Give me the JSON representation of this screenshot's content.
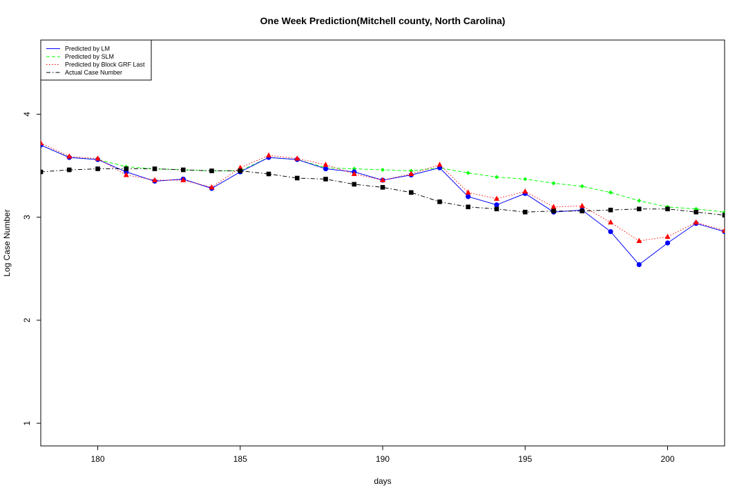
{
  "chart_data": {
    "type": "line",
    "title": "One Week Prediction(Mitchell county, North Carolina)",
    "xlabel": "days",
    "ylabel": "Log Case Number",
    "xlim": [
      178,
      202
    ],
    "ylim": [
      0.78,
      4.72
    ],
    "x_ticks": [
      180,
      185,
      190,
      195,
      200
    ],
    "y_ticks": [
      1,
      2,
      3,
      4
    ],
    "legend_position": "top-left",
    "x": [
      178,
      179,
      180,
      181,
      182,
      183,
      184,
      185,
      186,
      187,
      188,
      189,
      190,
      191,
      192,
      193,
      194,
      195,
      196,
      197,
      198,
      199,
      200,
      201,
      202
    ],
    "series": [
      {
        "name": "Predicted by LM",
        "color": "#0000ff",
        "line_style": "solid",
        "marker": "circle",
        "values": [
          3.7,
          3.58,
          3.56,
          3.44,
          3.35,
          3.37,
          3.28,
          3.44,
          3.58,
          3.56,
          3.47,
          3.44,
          3.36,
          3.41,
          3.48,
          3.2,
          3.12,
          3.23,
          3.05,
          3.07,
          2.86,
          2.54,
          2.75,
          2.94,
          2.86
        ]
      },
      {
        "name": "Predicted by SLM",
        "color": "#00ff00",
        "line_style": "dashed",
        "marker": "diamond",
        "values": [
          3.7,
          3.58,
          3.56,
          3.49,
          3.47,
          3.46,
          3.45,
          3.45,
          3.58,
          3.56,
          3.48,
          3.47,
          3.46,
          3.45,
          3.48,
          3.43,
          3.39,
          3.37,
          3.33,
          3.3,
          3.24,
          3.16,
          3.1,
          3.08,
          3.05
        ]
      },
      {
        "name": "Predicted by Block GRF Last",
        "color": "#ff0000",
        "line_style": "dotted",
        "marker": "triangle",
        "values": [
          3.72,
          3.59,
          3.57,
          3.41,
          3.36,
          3.36,
          3.29,
          3.48,
          3.6,
          3.57,
          3.51,
          3.42,
          3.36,
          3.42,
          3.51,
          3.24,
          3.18,
          3.25,
          3.1,
          3.11,
          2.95,
          2.77,
          2.81,
          2.95,
          2.87
        ]
      },
      {
        "name": "Actual Case Number",
        "color": "#000000",
        "line_style": "dashdot",
        "marker": "square",
        "values": [
          3.44,
          3.46,
          3.47,
          3.47,
          3.47,
          3.46,
          3.45,
          3.45,
          3.42,
          3.38,
          3.37,
          3.32,
          3.29,
          3.24,
          3.15,
          3.1,
          3.08,
          3.05,
          3.06,
          3.06,
          3.07,
          3.08,
          3.08,
          3.05,
          3.02
        ]
      }
    ]
  }
}
